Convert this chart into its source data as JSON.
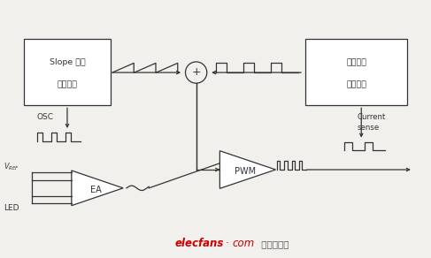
{
  "bg_color": "#f2f0ec",
  "fig_width": 4.87,
  "fig_height": 2.92,
  "dpi": 100,
  "slope_text1": "Slope 信号",
  "slope_text2": "产生电路",
  "current_text1": "电流采样",
  "current_text2": "放大电路",
  "osc_text": "OSC",
  "current_sense1": "Current",
  "current_sense2": "sense",
  "ea_text": "EA",
  "pwm_text": "PWM",
  "vref_text": "$V_{REF}$",
  "led_text": "LED",
  "watermark_text": "elecfans",
  "watermark_dot": "·",
  "watermark_com": "com",
  "watermark_color": "#cc0000",
  "watermark_suffix": " 电子发烧友",
  "watermark_suffix_color": "#555555",
  "dark": "#333333",
  "xlim": [
    0,
    10
  ],
  "ylim": [
    0,
    6
  ]
}
